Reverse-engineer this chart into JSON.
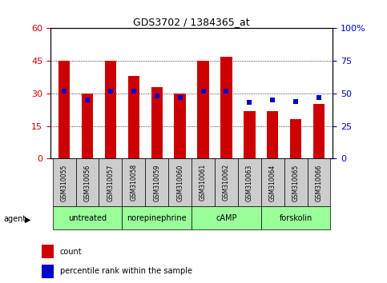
{
  "title": "GDS3702 / 1384365_at",
  "samples": [
    "GSM310055",
    "GSM310056",
    "GSM310057",
    "GSM310058",
    "GSM310059",
    "GSM310060",
    "GSM310061",
    "GSM310062",
    "GSM310063",
    "GSM310064",
    "GSM310065",
    "GSM310066"
  ],
  "counts": [
    45,
    30,
    45,
    38,
    33,
    30,
    45,
    47,
    22,
    22,
    18,
    25
  ],
  "percentiles": [
    52,
    45,
    52,
    52,
    48,
    47,
    52,
    52,
    43,
    45,
    44,
    47
  ],
  "bar_color": "#cc0000",
  "pct_color": "#0000cc",
  "ylim_left": [
    0,
    60
  ],
  "ylim_right": [
    0,
    100
  ],
  "yticks_left": [
    0,
    15,
    30,
    45,
    60
  ],
  "yticks_right": [
    0,
    25,
    50,
    75,
    100
  ],
  "ytick_labels_right": [
    "0",
    "25",
    "50",
    "75",
    "100%"
  ],
  "groups": [
    {
      "label": "untreated",
      "start": 0,
      "end": 3
    },
    {
      "label": "norepinephrine",
      "start": 3,
      "end": 6
    },
    {
      "label": "cAMP",
      "start": 6,
      "end": 9
    },
    {
      "label": "forskolin",
      "start": 9,
      "end": 12
    }
  ],
  "group_color": "#99ff99",
  "tick_bg": "#cccccc",
  "legend_count_label": "count",
  "legend_pct_label": "percentile rank within the sample",
  "bar_width": 0.5,
  "fig_width": 4.83,
  "fig_height": 3.54,
  "dpi": 100
}
